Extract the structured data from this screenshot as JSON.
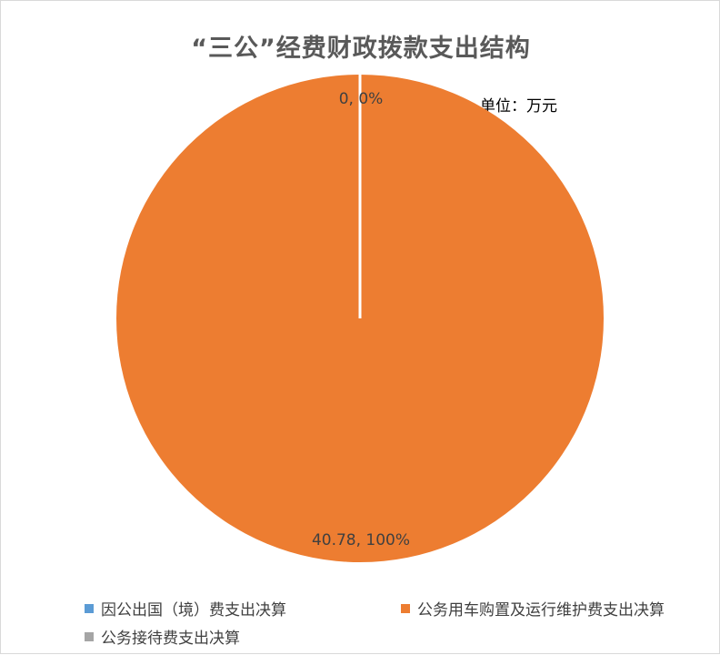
{
  "chart_data": {
    "type": "pie",
    "title": "“三公”经费财政拨款支出结构",
    "unit_note": "单位：万元",
    "categories": [
      "因公出国（境）费支出决算",
      "公务用车购置及运行维护费支出决算",
      "公务接待费支出决算"
    ],
    "values": [
      0,
      40.78,
      0
    ],
    "colors": [
      "#5b9bd5",
      "#ed7d31",
      "#a5a5a5"
    ],
    "data_labels": [
      "0, 0%",
      "40.78, 100%",
      ""
    ],
    "legend_position": "bottom"
  }
}
